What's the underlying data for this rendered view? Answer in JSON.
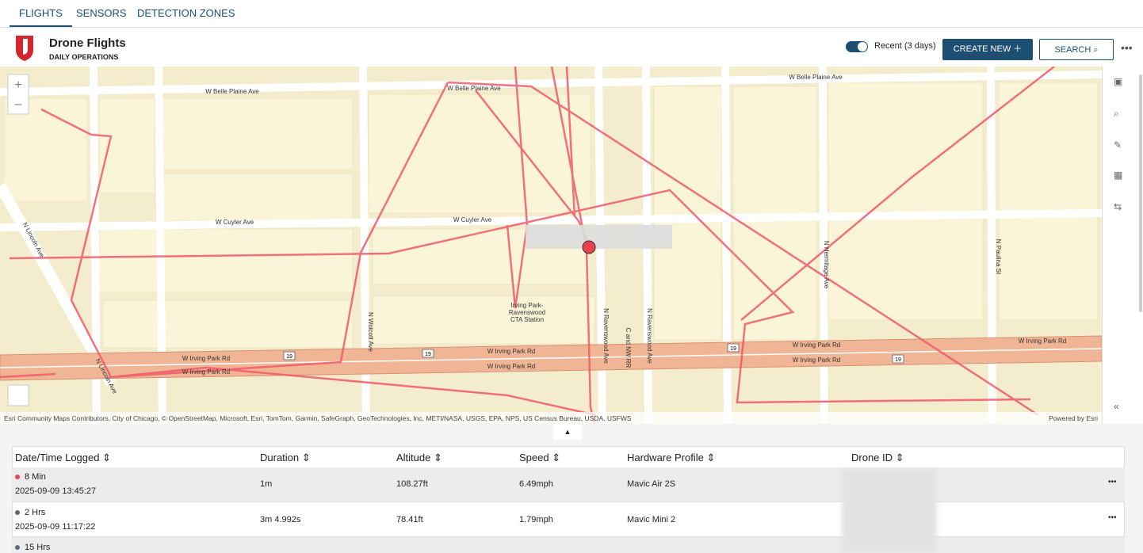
{
  "tabs": [
    "FLIGHTS",
    "SENSORS",
    "DETECTION ZONES"
  ],
  "header": {
    "title": "Drone Flights",
    "subtitle": "DAILY OPERATIONS",
    "toggle_label": "Recent (3 days)",
    "create_button": "CREATE NEW",
    "search_button": "SEARCH"
  },
  "map": {
    "street_labels": [
      "W Belle Plaine Ave",
      "W Belle Plaine Ave",
      "W Belle Plaine Ave",
      "W Cuyler Ave",
      "W Cuyler Ave",
      "N Lincoln Ave",
      "N Lincoln Ave",
      "N Wolcott Ave",
      "W Irving Park Rd",
      "W Irving Park Rd",
      "W Irving Park Rd",
      "W Irving Park Rd",
      "N Ravenswood Ave",
      "C and NW RR",
      "N Ravenswood Ave",
      "N Hermitage Ave",
      "N Paulina St",
      "W Irving Park Rd",
      "W Irving Park Rd",
      "W Irving Park Rd"
    ],
    "station_label": [
      "Irving Park-",
      "Ravenswood",
      "CTA Station"
    ],
    "route_shields": [
      "19",
      "19",
      "19",
      "19"
    ],
    "attribution": "Esri Community Maps Contributors, City of Chicago, © OpenStreetMap, Microsoft, Esri, TomTom, Garmin, SafeGraph, GeoTechnologies, Inc, METI/NASA, USGS, EPA, NPS, US Census Bureau, USDA, USFWS",
    "powered_by": "Powered by Esri"
  },
  "table": {
    "columns": [
      "Date/Time Logged",
      "Duration",
      "Altitude",
      "Speed",
      "Hardware Profile",
      "Drone ID"
    ],
    "rows": [
      {
        "age": "8 Min",
        "logged": "2025-09-09 13:45:27",
        "duration": "1m",
        "altitude": "108.27ft",
        "speed": "6.49mph",
        "hardware": "Mavic Air 2S"
      },
      {
        "age": "2 Hrs",
        "logged": "2025-09-09 11:17:22",
        "duration": "3m 4.992s",
        "altitude": "78.41ft",
        "speed": "1.79mph",
        "hardware": "Mavic Mini 2"
      },
      {
        "age": "15 Hrs"
      }
    ]
  }
}
